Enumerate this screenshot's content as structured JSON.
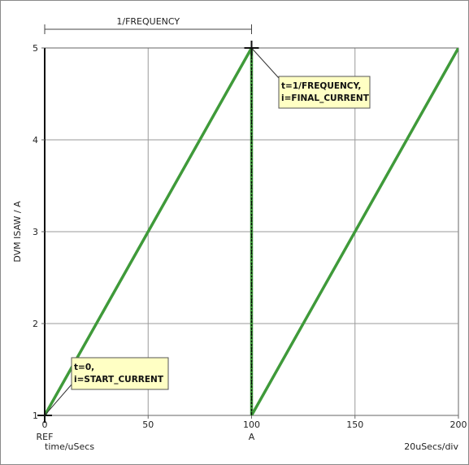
{
  "chart_data": {
    "type": "line",
    "title": "",
    "xlabel": "time/uSecs",
    "ylabel": "DVM ISAW / A",
    "x_scale_label": "20uSecs/div",
    "xlim": [
      0,
      200
    ],
    "ylim": [
      1,
      5
    ],
    "x_ticks": [
      "0",
      "50",
      "100",
      "150",
      "200"
    ],
    "y_ticks": [
      "1",
      "2",
      "3",
      "4",
      "5"
    ],
    "grid": true,
    "dimension": {
      "label": "1/FREQUENCY",
      "from": 0,
      "to": 100
    },
    "markers": [
      {
        "label": "REF",
        "x": 0
      },
      {
        "label": "A",
        "x": 100
      }
    ],
    "series": [
      {
        "values": [
          [
            0,
            1
          ],
          [
            100,
            5
          ],
          [
            100,
            1
          ],
          [
            200,
            5
          ]
        ],
        "color": "#3f9a3a"
      }
    ],
    "annotations": [
      {
        "lines": [
          "t=0,",
          "i=START_CURRENT"
        ],
        "point": [
          0,
          1
        ]
      },
      {
        "lines": [
          "t=1/FREQUENCY,",
          "i=FINAL_CURRENT"
        ],
        "point": [
          100,
          5
        ]
      }
    ]
  }
}
